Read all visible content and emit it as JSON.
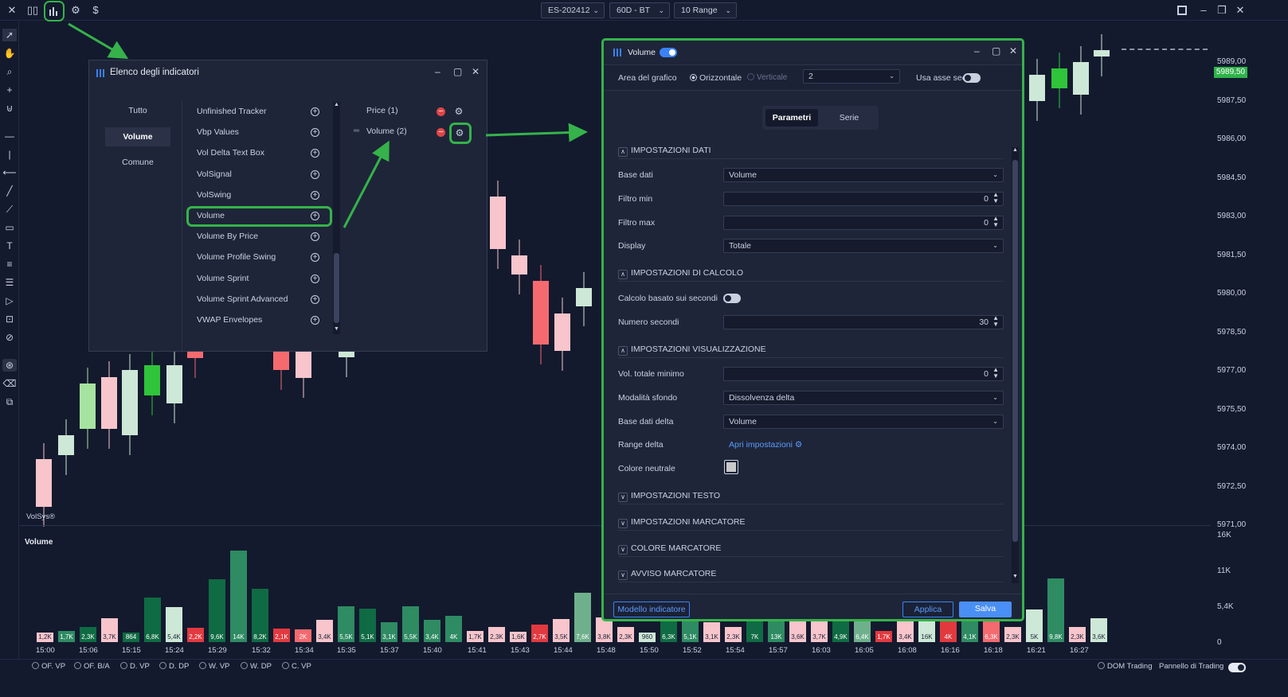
{
  "topbar": {
    "symbol": "ES-202412",
    "timeframe": "60D - BT",
    "range": "10 Range",
    "currency_icon": "$"
  },
  "price_scale": [
    "5989,00",
    "5987,50",
    "5986,00",
    "5984,50",
    "5983,00",
    "5981,50",
    "5980,00",
    "5978,50",
    "5977,00",
    "5975,50",
    "5974,00",
    "5972,50",
    "5971,00"
  ],
  "current_price": "5989,50",
  "volume_scale": [
    "16K",
    "11K",
    "5,4K",
    "0"
  ],
  "chart": {
    "watermark": "VolSys®",
    "volume_title": "Volume",
    "time_labels": [
      "15:00",
      "15:06",
      "15:15",
      "15:24",
      "15:29",
      "15:32",
      "15:34",
      "15:35",
      "15:37",
      "15:40",
      "15:41",
      "15:43",
      "15:44",
      "15:48",
      "15:50",
      "15:52",
      "15:54",
      "15:57",
      "16:03",
      "16:05",
      "16:08",
      "16:16",
      "16:18",
      "16:21",
      "16:27"
    ],
    "volume_bars": [
      {
        "label": "1,2K",
        "v": 1.2,
        "c": "#f7c5cb"
      },
      {
        "label": "1,7K",
        "v": 1.7,
        "c": "#2e8b62"
      },
      {
        "label": "2,3K",
        "v": 2.3,
        "c": "#0f6b43"
      },
      {
        "label": "3,7K",
        "v": 3.7,
        "c": "#f7c5cb"
      },
      {
        "label": "864",
        "v": 0.9,
        "c": "#0f6b43"
      },
      {
        "label": "6,8K",
        "v": 6.8,
        "c": "#0f6b43"
      },
      {
        "label": "5,4K",
        "v": 5.4,
        "c": "#cde8d6"
      },
      {
        "label": "2,2K",
        "v": 2.2,
        "c": "#e2393f"
      },
      {
        "label": "9,6K",
        "v": 9.6,
        "c": "#0f6b43"
      },
      {
        "label": "14K",
        "v": 14,
        "c": "#2e8b62"
      },
      {
        "label": "8,2K",
        "v": 8.2,
        "c": "#0f6b43"
      },
      {
        "label": "2,1K",
        "v": 2.1,
        "c": "#e2393f"
      },
      {
        "label": "2K",
        "v": 2.0,
        "c": "#f46a6f"
      },
      {
        "label": "3,4K",
        "v": 3.4,
        "c": "#f7c5cb"
      },
      {
        "label": "5,5K",
        "v": 5.5,
        "c": "#2e8b62"
      },
      {
        "label": "5,1K",
        "v": 5.1,
        "c": "#0f6b43"
      },
      {
        "label": "3,1K",
        "v": 3.1,
        "c": "#2e8b62"
      },
      {
        "label": "5,5K",
        "v": 5.5,
        "c": "#2e8b62"
      },
      {
        "label": "3,4K",
        "v": 3.4,
        "c": "#2e8b62"
      },
      {
        "label": "4K",
        "v": 4.0,
        "c": "#2e8b62"
      },
      {
        "label": "1,7K",
        "v": 1.7,
        "c": "#f7c5cb"
      },
      {
        "label": "2,3K",
        "v": 2.3,
        "c": "#f7c5cb"
      },
      {
        "label": "1,6K",
        "v": 1.6,
        "c": "#f7c5cb"
      },
      {
        "label": "2,7K",
        "v": 2.7,
        "c": "#e2393f"
      },
      {
        "label": "3,5K",
        "v": 3.5,
        "c": "#f7c5cb"
      },
      {
        "label": "7,6K",
        "v": 7.6,
        "c": "#6fb08c"
      },
      {
        "label": "3,8K",
        "v": 3.8,
        "c": "#f7c5cb"
      },
      {
        "label": "2,3K",
        "v": 2.3,
        "c": "#f7c5cb"
      },
      {
        "label": "960",
        "v": 1.0,
        "c": "#cde8d6"
      },
      {
        "label": "6,3K",
        "v": 6.3,
        "c": "#0f6b43"
      },
      {
        "label": "5,1K",
        "v": 5.1,
        "c": "#2e8b62"
      },
      {
        "label": "3,1K",
        "v": 3.1,
        "c": "#f7c5cb"
      },
      {
        "label": "2,3K",
        "v": 2.3,
        "c": "#f7c5cb"
      },
      {
        "label": "7K",
        "v": 7.0,
        "c": "#0f6b43"
      },
      {
        "label": "13K",
        "v": 13,
        "c": "#2e8b62"
      },
      {
        "label": "3,6K",
        "v": 3.6,
        "c": "#f7c5cb"
      },
      {
        "label": "3,7K",
        "v": 3.7,
        "c": "#f7c5cb"
      },
      {
        "label": "4,9K",
        "v": 4.9,
        "c": "#0f6b43"
      },
      {
        "label": "6,4K",
        "v": 6.4,
        "c": "#6fb08c"
      },
      {
        "label": "1,7K",
        "v": 1.7,
        "c": "#e2393f"
      },
      {
        "label": "3,4K",
        "v": 3.4,
        "c": "#f7c5cb"
      },
      {
        "label": "16K",
        "v": 16,
        "c": "#cde8d6"
      },
      {
        "label": "4K",
        "v": 4.0,
        "c": "#e2393f"
      },
      {
        "label": "4,1K",
        "v": 4.1,
        "c": "#2e8b62"
      },
      {
        "label": "6,3K",
        "v": 6.3,
        "c": "#f46a6f"
      },
      {
        "label": "2,3K",
        "v": 2.3,
        "c": "#f7c5cb"
      },
      {
        "label": "5K",
        "v": 5.0,
        "c": "#cde8d6"
      },
      {
        "label": "9,8K",
        "v": 9.8,
        "c": "#2e8b62"
      },
      {
        "label": "2,3K",
        "v": 2.3,
        "c": "#f7c5cb"
      },
      {
        "label": "3,6K",
        "v": 3.6,
        "c": "#cde8d6"
      }
    ]
  },
  "bottombar": {
    "items": [
      "OF. VP",
      "OF. B/A",
      "D. VP",
      "D. DP",
      "W. VP",
      "W. DP",
      "C. VP"
    ],
    "dom_trading": "DOM Trading",
    "pannello": "Pannello di Trading"
  },
  "indicator_list": {
    "title": "Elenco degli indicatori",
    "categories": [
      "Tutto",
      "Volume",
      "Comune"
    ],
    "items": [
      "Unfinished Tracker",
      "Vbp Values",
      "Vol Delta Text Box",
      "VolSignal",
      "VolSwing",
      "Volume",
      "Volume By Price",
      "Volume Profile Swing",
      "Volume Sprint",
      "Volume Sprint Advanced",
      "VWAP Envelopes"
    ],
    "active": [
      "Price (1)",
      "Volume (2)"
    ]
  },
  "volume_window": {
    "title": "Volume",
    "area_label": "Area del grafico",
    "orient_h": "Orizzontale",
    "orient_v": "Verticale",
    "area_value": "2",
    "usa_asse": "Usa asse sec.",
    "tab_params": "Parametri",
    "tab_series": "Serie",
    "sect_dati": "IMPOSTAZIONI DATI",
    "base_dati_lbl": "Base dati",
    "base_dati_val": "Volume",
    "filtro_min_lbl": "Filtro min",
    "filtro_min_val": "0",
    "filtro_max_lbl": "Filtro max",
    "filtro_max_val": "0",
    "display_lbl": "Display",
    "display_val": "Totale",
    "sect_calcolo": "IMPOSTAZIONI DI CALCOLO",
    "calcolo_lbl": "Calcolo basato sui secondi",
    "num_sec_lbl": "Numero secondi",
    "num_sec_val": "30",
    "sect_vis": "IMPOSTAZIONI VISUALIZZAZIONE",
    "vol_min_lbl": "Vol. totale minimo",
    "vol_min_val": "0",
    "modalita_lbl": "Modalità sfondo",
    "modalita_val": "Dissolvenza delta",
    "base_delta_lbl": "Base dati delta",
    "base_delta_val": "Volume",
    "range_delta_lbl": "Range delta",
    "range_delta_link": "Apri impostazioni",
    "colore_neutrale_lbl": "Colore neutrale",
    "sect_testo": "IMPOSTAZIONI TESTO",
    "sect_marcatore": "IMPOSTAZIONI MARCATORE",
    "sect_colore_marc": "COLORE MARCATORE",
    "sect_avviso": "AVVISO MARCATORE",
    "btn_modello": "Modello indicatore",
    "btn_applica": "Applica",
    "btn_salva": "Salva"
  },
  "colors": {
    "accent": "#35b34a",
    "blue": "#3b82f6",
    "bg": "#131a2e",
    "panel": "#1e2538"
  }
}
